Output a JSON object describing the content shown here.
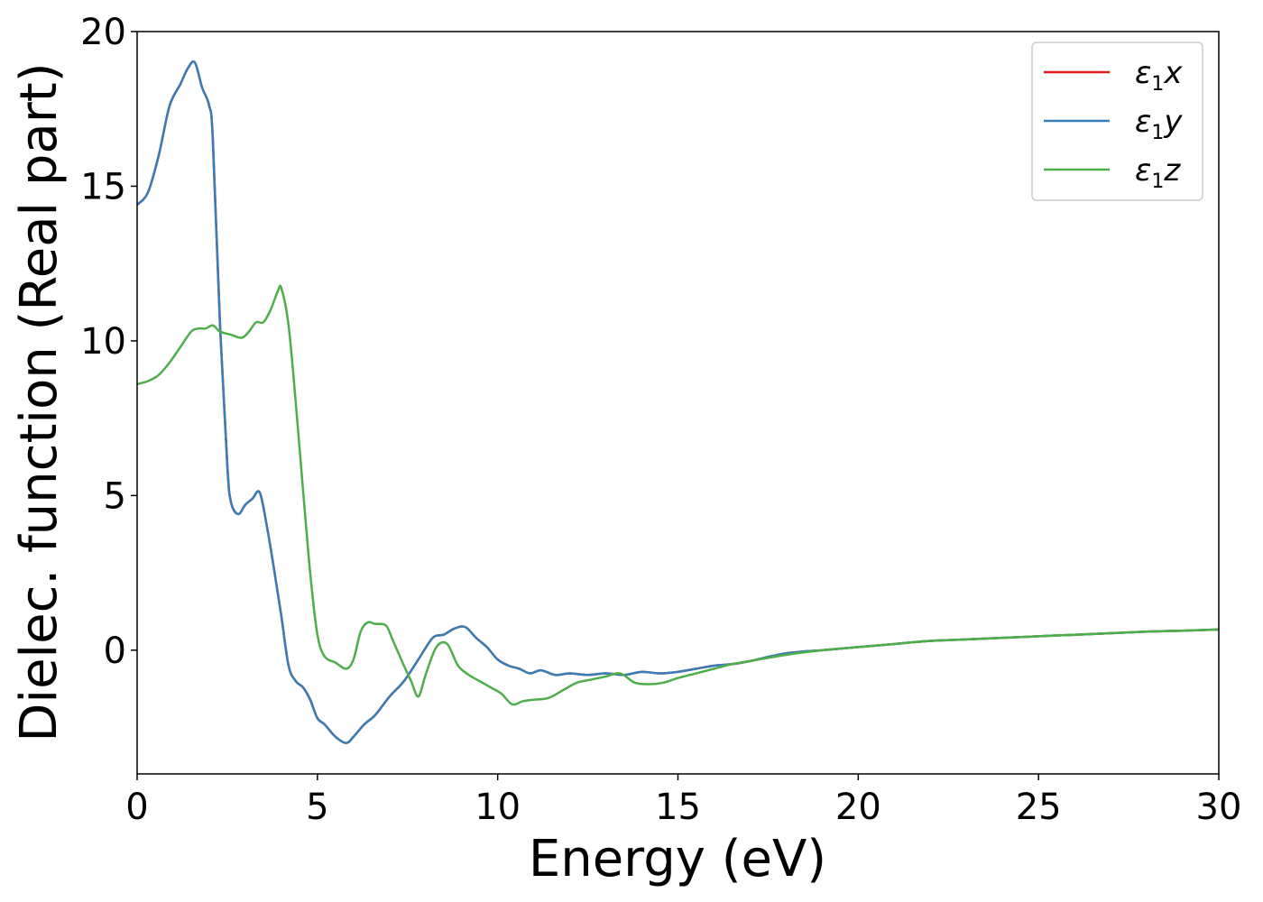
{
  "chart_data": {
    "type": "line",
    "title": "",
    "xlabel": "Energy (eV)",
    "ylabel": "Dielec. function (Real part)",
    "xlim": [
      0,
      30
    ],
    "ylim": [
      -4,
      20
    ],
    "xticks": [
      0,
      5,
      10,
      15,
      20,
      25,
      30
    ],
    "yticks": [
      0,
      5,
      10,
      15,
      20
    ],
    "xtick_labels": [
      "0",
      "5",
      "10",
      "15",
      "20",
      "25",
      "30"
    ],
    "ytick_labels": [
      "0",
      "5",
      "10",
      "15",
      "20"
    ],
    "grid": false,
    "legend_position": "top-right",
    "series": [
      {
        "name": "ε1x",
        "color": "#e41a1c",
        "x": [
          0,
          0.3,
          0.6,
          0.9,
          1.2,
          1.4,
          1.6,
          1.8,
          2.0,
          2.1,
          2.3,
          2.5,
          2.6,
          2.8,
          3.0,
          3.2,
          3.4,
          3.6,
          3.8,
          4.0,
          4.2,
          4.4,
          4.6,
          4.8,
          5.0,
          5.2,
          5.5,
          5.8,
          6.0,
          6.3,
          6.6,
          7.0,
          7.4,
          7.8,
          8.2,
          8.5,
          8.8,
          9.1,
          9.4,
          9.7,
          10.0,
          10.3,
          10.6,
          10.9,
          11.2,
          11.6,
          12.0,
          12.5,
          13.0,
          13.5,
          14.0,
          14.5,
          15.0,
          15.5,
          16.0,
          16.5,
          17.0,
          18.0,
          19.0,
          20.0,
          21.0,
          22.0,
          23.0,
          24.0,
          25.0,
          26.0,
          27.0,
          28.0,
          29.0,
          30.0
        ],
        "y": [
          14.4,
          14.8,
          16.0,
          17.6,
          18.3,
          18.8,
          19.0,
          18.2,
          17.6,
          16.5,
          10.5,
          6.0,
          4.8,
          4.4,
          4.7,
          4.9,
          5.1,
          4.0,
          2.6,
          1.1,
          -0.5,
          -1.0,
          -1.2,
          -1.6,
          -2.2,
          -2.4,
          -2.8,
          -3.0,
          -2.8,
          -2.4,
          -2.1,
          -1.5,
          -1.0,
          -0.3,
          0.4,
          0.5,
          0.7,
          0.75,
          0.4,
          0.1,
          -0.3,
          -0.5,
          -0.6,
          -0.75,
          -0.65,
          -0.8,
          -0.75,
          -0.8,
          -0.75,
          -0.8,
          -0.7,
          -0.75,
          -0.7,
          -0.6,
          -0.5,
          -0.45,
          -0.35,
          -0.1,
          0.0,
          0.1,
          0.2,
          0.3,
          0.35,
          0.4,
          0.45,
          0.5,
          0.55,
          0.6,
          0.63,
          0.67
        ]
      },
      {
        "name": "ε1y",
        "color": "#377eb8",
        "x": [
          0,
          0.3,
          0.6,
          0.9,
          1.2,
          1.4,
          1.6,
          1.8,
          2.0,
          2.1,
          2.3,
          2.5,
          2.6,
          2.8,
          3.0,
          3.2,
          3.4,
          3.6,
          3.8,
          4.0,
          4.2,
          4.4,
          4.6,
          4.8,
          5.0,
          5.2,
          5.5,
          5.8,
          6.0,
          6.3,
          6.6,
          7.0,
          7.4,
          7.8,
          8.2,
          8.5,
          8.8,
          9.1,
          9.4,
          9.7,
          10.0,
          10.3,
          10.6,
          10.9,
          11.2,
          11.6,
          12.0,
          12.5,
          13.0,
          13.5,
          14.0,
          14.5,
          15.0,
          15.5,
          16.0,
          16.5,
          17.0,
          18.0,
          19.0,
          20.0,
          21.0,
          22.0,
          23.0,
          24.0,
          25.0,
          26.0,
          27.0,
          28.0,
          29.0,
          30.0
        ],
        "y": [
          14.4,
          14.8,
          16.0,
          17.6,
          18.3,
          18.8,
          19.0,
          18.2,
          17.6,
          16.5,
          10.5,
          6.0,
          4.8,
          4.4,
          4.7,
          4.9,
          5.1,
          4.0,
          2.6,
          1.1,
          -0.5,
          -1.0,
          -1.2,
          -1.6,
          -2.2,
          -2.4,
          -2.8,
          -3.0,
          -2.8,
          -2.4,
          -2.1,
          -1.5,
          -1.0,
          -0.3,
          0.4,
          0.5,
          0.7,
          0.75,
          0.4,
          0.1,
          -0.3,
          -0.5,
          -0.6,
          -0.75,
          -0.65,
          -0.8,
          -0.75,
          -0.8,
          -0.75,
          -0.8,
          -0.7,
          -0.75,
          -0.7,
          -0.6,
          -0.5,
          -0.45,
          -0.35,
          -0.1,
          0.0,
          0.1,
          0.2,
          0.3,
          0.35,
          0.4,
          0.45,
          0.5,
          0.55,
          0.6,
          0.63,
          0.67
        ]
      },
      {
        "name": "ε1z",
        "color": "#4daf4a",
        "x": [
          0,
          0.3,
          0.6,
          0.9,
          1.2,
          1.5,
          1.7,
          1.9,
          2.1,
          2.3,
          2.6,
          2.9,
          3.1,
          3.3,
          3.5,
          3.7,
          3.9,
          4.0,
          4.2,
          4.4,
          4.6,
          4.8,
          5.0,
          5.2,
          5.5,
          5.8,
          6.0,
          6.2,
          6.4,
          6.6,
          6.9,
          7.1,
          7.4,
          7.6,
          7.8,
          8.0,
          8.3,
          8.6,
          8.9,
          9.2,
          9.5,
          9.8,
          10.1,
          10.4,
          10.7,
          11.0,
          11.4,
          11.8,
          12.2,
          12.6,
          13.0,
          13.4,
          13.8,
          14.2,
          14.6,
          15.0,
          15.5,
          16.0,
          16.5,
          17.0,
          18.0,
          19.0,
          20.0,
          21.0,
          22.0,
          23.0,
          24.0,
          25.0,
          26.0,
          27.0,
          28.0,
          29.0,
          30.0
        ],
        "y": [
          8.6,
          8.7,
          8.9,
          9.3,
          9.8,
          10.3,
          10.4,
          10.4,
          10.5,
          10.3,
          10.2,
          10.1,
          10.3,
          10.6,
          10.6,
          11.0,
          11.6,
          11.7,
          10.5,
          8.0,
          5.2,
          2.5,
          0.5,
          -0.2,
          -0.4,
          -0.6,
          -0.3,
          0.6,
          0.9,
          0.85,
          0.8,
          0.3,
          -0.5,
          -1.0,
          -1.5,
          -0.8,
          0.1,
          0.2,
          -0.5,
          -0.8,
          -1.0,
          -1.2,
          -1.4,
          -1.75,
          -1.65,
          -1.6,
          -1.55,
          -1.3,
          -1.05,
          -0.95,
          -0.85,
          -0.75,
          -1.05,
          -1.1,
          -1.05,
          -0.9,
          -0.75,
          -0.6,
          -0.45,
          -0.35,
          -0.15,
          0.0,
          0.1,
          0.2,
          0.3,
          0.35,
          0.4,
          0.45,
          0.5,
          0.55,
          0.6,
          0.63,
          0.67
        ]
      }
    ]
  }
}
